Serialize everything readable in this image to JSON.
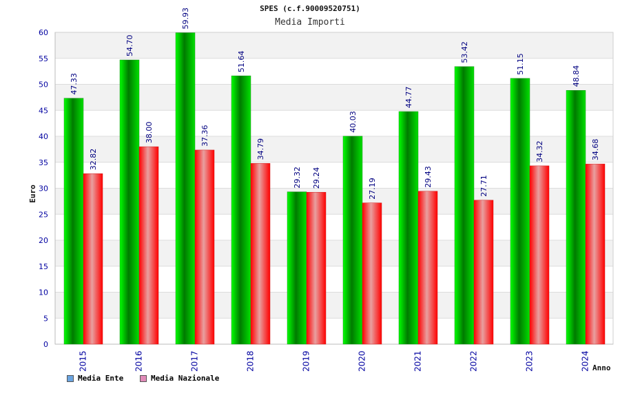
{
  "chart_data": {
    "type": "bar",
    "title": "SPES (c.f.90009520751)",
    "subtitle": "Media Importi",
    "ylabel": "Euro",
    "xlabel": "Anno",
    "ylim": [
      0,
      60
    ],
    "yticks": [
      0,
      5,
      10,
      15,
      20,
      25,
      30,
      35,
      40,
      45,
      50,
      55,
      60
    ],
    "categories": [
      "2015",
      "2016",
      "2017",
      "2018",
      "2019",
      "2020",
      "2021",
      "2022",
      "2023",
      "2024"
    ],
    "series": [
      {
        "name": "Media Ente",
        "color": "#00c000",
        "legend_color": "#6aa4e0",
        "values": [
          47.33,
          54.7,
          59.93,
          51.64,
          29.32,
          40.03,
          44.77,
          53.42,
          51.15,
          48.84
        ],
        "labels": [
          "47.33",
          "54.70",
          "59.93",
          "51.64",
          "29.32",
          "40.03",
          "44.77",
          "53.42",
          "51.15",
          "48.84"
        ]
      },
      {
        "name": "Media Nazionale",
        "color": "#e00000",
        "legend_color": "#e08ab8",
        "values": [
          32.82,
          38.0,
          37.36,
          34.79,
          29.24,
          27.19,
          29.43,
          27.71,
          34.32,
          34.68
        ],
        "labels": [
          "32.82",
          "38.00",
          "37.36",
          "34.79",
          "29.24",
          "27.19",
          "29.43",
          "27.71",
          "34.32",
          "34.68"
        ]
      }
    ],
    "grid": true,
    "legend_position": "bottom-left"
  }
}
